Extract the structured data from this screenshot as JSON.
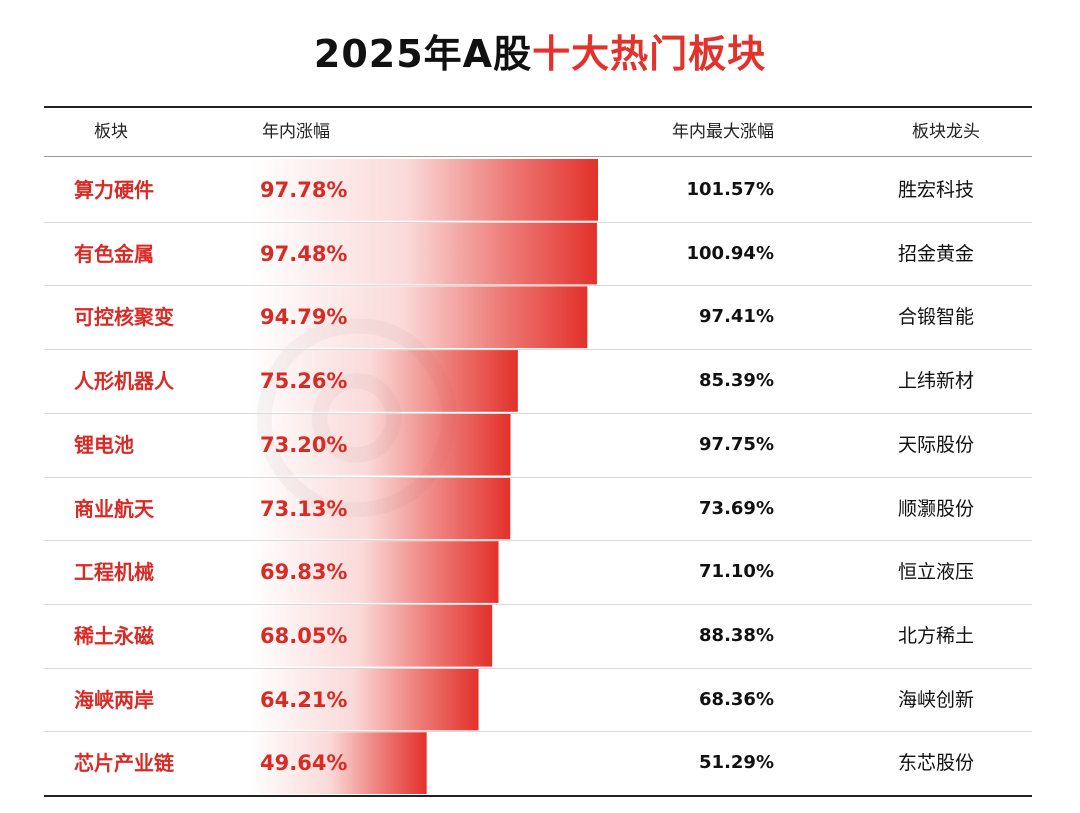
{
  "title": {
    "part1": "2025年A股",
    "part2": "十大热门板块"
  },
  "colors": {
    "accent": "#e3312b",
    "bar": "#e3312b",
    "text": "#111111"
  },
  "columns": {
    "sector": "板块",
    "ytd": "年内涨幅",
    "max": "年内最大涨幅",
    "leader": "板块龙头"
  },
  "chart_data": {
    "type": "table",
    "columns": [
      "板块",
      "年内涨幅",
      "年内最大涨幅",
      "板块龙头"
    ],
    "rows": [
      {
        "sector": "算力硬件",
        "ytd": "97.78%",
        "ytd_value": 97.78,
        "max": "101.57%",
        "leader": "胜宏科技"
      },
      {
        "sector": "有色金属",
        "ytd": "97.48%",
        "ytd_value": 97.48,
        "max": "100.94%",
        "leader": "招金黄金"
      },
      {
        "sector": "可控核聚变",
        "ytd": "94.79%",
        "ytd_value": 94.79,
        "max": "97.41%",
        "leader": "合锻智能"
      },
      {
        "sector": "人形机器人",
        "ytd": "75.26%",
        "ytd_value": 75.26,
        "max": "85.39%",
        "leader": "上纬新材"
      },
      {
        "sector": "锂电池",
        "ytd": "73.20%",
        "ytd_value": 73.2,
        "max": "97.75%",
        "leader": "天际股份"
      },
      {
        "sector": "商业航天",
        "ytd": "73.13%",
        "ytd_value": 73.13,
        "max": "73.69%",
        "leader": "顺灏股份"
      },
      {
        "sector": "工程机械",
        "ytd": "69.83%",
        "ytd_value": 69.83,
        "max": "71.10%",
        "leader": "恒立液压"
      },
      {
        "sector": "稀土永磁",
        "ytd": "68.05%",
        "ytd_value": 68.05,
        "max": "88.38%",
        "leader": "北方稀土"
      },
      {
        "sector": "海峡两岸",
        "ytd": "64.21%",
        "ytd_value": 64.21,
        "max": "68.36%",
        "leader": "海峡创新"
      },
      {
        "sector": "芯片产业链",
        "ytd": "49.64%",
        "ytd_value": 49.64,
        "max": "51.29%",
        "leader": "东芯股份"
      }
    ]
  }
}
